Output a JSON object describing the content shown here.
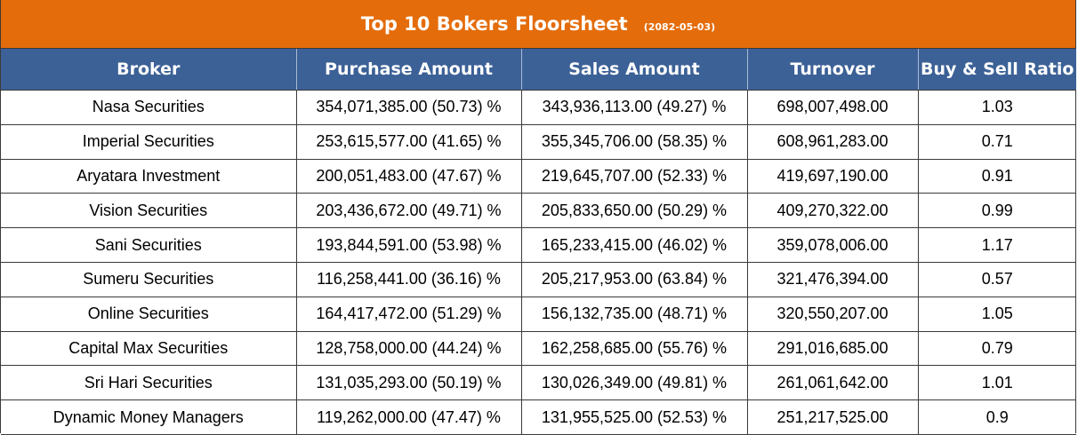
{
  "title": "Top 10 Bokers Floorsheet",
  "date": "(2082-05-03)",
  "columns": [
    "Broker",
    "Purchase Amount",
    "Sales Amount",
    "Turnover",
    "Buy & Sell Ratio"
  ],
  "colors": {
    "title_bg": "#e46c0a",
    "header_bg": "#3c6197",
    "purchase_text": "#1f9e3f",
    "sales_text": "#d4283c"
  },
  "rows": [
    {
      "broker": "Nasa Securities",
      "purchase": "354,071,385.00 (50.73) %",
      "sales": "343,936,113.00 (49.27) %",
      "turnover": "698,007,498.00",
      "ratio": "1.03"
    },
    {
      "broker": "Imperial Securities",
      "purchase": "253,615,577.00 (41.65) %",
      "sales": "355,345,706.00 (58.35) %",
      "turnover": "608,961,283.00",
      "ratio": "0.71"
    },
    {
      "broker": "Aryatara Investment",
      "purchase": "200,051,483.00 (47.67) %",
      "sales": "219,645,707.00 (52.33) %",
      "turnover": "419,697,190.00",
      "ratio": "0.91"
    },
    {
      "broker": "Vision Securities",
      "purchase": "203,436,672.00 (49.71) %",
      "sales": "205,833,650.00 (50.29) %",
      "turnover": "409,270,322.00",
      "ratio": "0.99"
    },
    {
      "broker": "Sani Securities",
      "purchase": "193,844,591.00 (53.98) %",
      "sales": "165,233,415.00 (46.02) %",
      "turnover": "359,078,006.00",
      "ratio": "1.17"
    },
    {
      "broker": "Sumeru Securities",
      "purchase": "116,258,441.00 (36.16) %",
      "sales": "205,217,953.00 (63.84) %",
      "turnover": "321,476,394.00",
      "ratio": "0.57"
    },
    {
      "broker": "Online Securities",
      "purchase": "164,417,472.00 (51.29) %",
      "sales": "156,132,735.00 (48.71) %",
      "turnover": "320,550,207.00",
      "ratio": "1.05"
    },
    {
      "broker": "Capital Max Securities",
      "purchase": "128,758,000.00 (44.24) %",
      "sales": "162,258,685.00 (55.76) %",
      "turnover": "291,016,685.00",
      "ratio": "0.79"
    },
    {
      "broker": "Sri Hari Securities",
      "purchase": "131,035,293.00 (50.19) %",
      "sales": "130,026,349.00 (49.81) %",
      "turnover": "261,061,642.00",
      "ratio": "1.01"
    },
    {
      "broker": "Dynamic Money Managers",
      "purchase": "119,262,000.00 (47.47) %",
      "sales": "131,955,525.00 (52.53) %",
      "turnover": "251,217,525.00",
      "ratio": "0.9"
    }
  ]
}
